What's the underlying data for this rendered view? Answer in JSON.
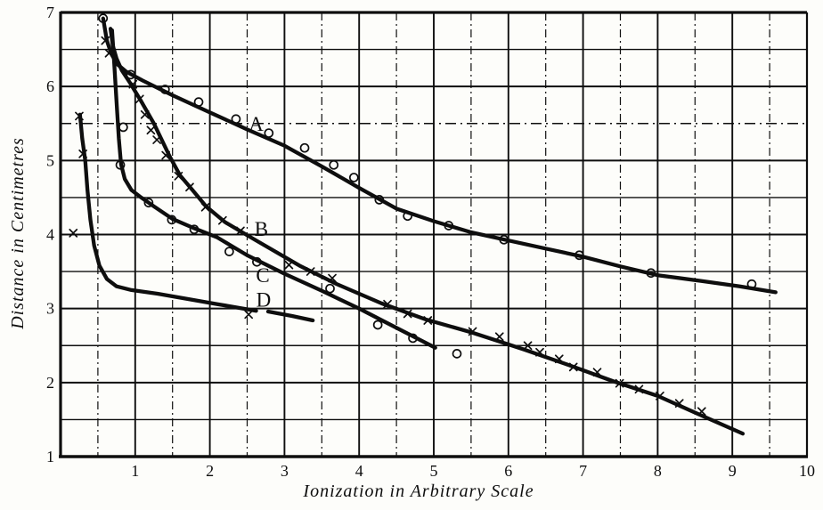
{
  "figure": {
    "background": "#fdfdfa",
    "ink": "#0e0e0e"
  },
  "chart_data": {
    "type": "line",
    "title": "",
    "xlabel": "Ionization in Arbitrary Scale",
    "ylabel": "Distance in Centimetres",
    "xlim": [
      0,
      10
    ],
    "ylim": [
      1,
      7
    ],
    "x_ticks": [
      1,
      2,
      3,
      4,
      5,
      6,
      7,
      8,
      9,
      10
    ],
    "y_ticks": [
      1,
      2,
      3,
      4,
      5,
      6,
      7
    ],
    "grid_step": 0.5,
    "grid": "on",
    "legend_position": "inline-curve-labels",
    "series": [
      {
        "name": "A",
        "marker": "circle",
        "label_pos": {
          "x": 2.62,
          "y": 5.5
        },
        "segments": [
          [
            [
              0.57,
              6.92
            ],
            [
              0.62,
              6.62
            ],
            [
              0.68,
              6.44
            ],
            [
              0.76,
              6.3
            ],
            [
              0.88,
              6.2
            ],
            [
              1.1,
              6.08
            ],
            [
              1.5,
              5.88
            ],
            [
              2.0,
              5.65
            ],
            [
              2.5,
              5.42
            ],
            [
              3.0,
              5.2
            ],
            [
              3.5,
              4.92
            ],
            [
              4.0,
              4.63
            ],
            [
              4.5,
              4.35
            ],
            [
              5.0,
              4.18
            ],
            [
              5.5,
              4.03
            ],
            [
              6.0,
              3.92
            ],
            [
              6.5,
              3.81
            ],
            [
              7.0,
              3.7
            ],
            [
              7.5,
              3.57
            ],
            [
              8.0,
              3.45
            ],
            [
              8.6,
              3.37
            ],
            [
              9.1,
              3.3
            ],
            [
              9.58,
              3.22
            ]
          ]
        ],
        "markers": [
          [
            0.57,
            6.92
          ],
          [
            0.94,
            6.16
          ],
          [
            1.4,
            5.96
          ],
          [
            1.85,
            5.79
          ],
          [
            2.35,
            5.56
          ],
          [
            2.79,
            5.37
          ],
          [
            3.27,
            5.17
          ],
          [
            3.66,
            4.94
          ],
          [
            3.93,
            4.77
          ],
          [
            4.27,
            4.47
          ],
          [
            4.65,
            4.25
          ],
          [
            5.2,
            4.12
          ],
          [
            5.94,
            3.93
          ],
          [
            6.95,
            3.72
          ],
          [
            7.91,
            3.48
          ],
          [
            9.26,
            3.33
          ]
        ]
      },
      {
        "name": "B",
        "marker": "x",
        "label_pos": {
          "x": 2.69,
          "y": 4.08
        },
        "segments": [
          [
            [
              0.67,
              6.78
            ],
            [
              0.7,
              6.55
            ],
            [
              0.75,
              6.38
            ],
            [
              0.82,
              6.22
            ],
            [
              0.93,
              6.05
            ],
            [
              1.08,
              5.8
            ],
            [
              1.25,
              5.5
            ],
            [
              1.46,
              5.06
            ],
            [
              1.6,
              4.8
            ],
            [
              1.75,
              4.62
            ],
            [
              1.95,
              4.38
            ],
            [
              2.2,
              4.17
            ],
            [
              2.45,
              4.02
            ],
            [
              2.62,
              3.92
            ],
            [
              3.2,
              3.58
            ],
            [
              3.7,
              3.33
            ],
            [
              4.3,
              3.07
            ],
            [
              4.9,
              2.85
            ],
            [
              5.5,
              2.68
            ],
            [
              6.2,
              2.45
            ],
            [
              6.8,
              2.24
            ],
            [
              7.4,
              2.02
            ],
            [
              8.0,
              1.82
            ],
            [
              8.6,
              1.55
            ],
            [
              9.14,
              1.31
            ]
          ]
        ],
        "markers": [
          [
            0.6,
            6.62
          ],
          [
            0.65,
            6.45
          ],
          [
            0.97,
            6.03
          ],
          [
            1.06,
            5.83
          ],
          [
            1.13,
            5.62
          ],
          [
            1.21,
            5.41
          ],
          [
            1.29,
            5.28
          ],
          [
            1.41,
            5.07
          ],
          [
            1.58,
            4.79
          ],
          [
            1.73,
            4.64
          ],
          [
            1.94,
            4.37
          ],
          [
            2.17,
            4.19
          ],
          [
            2.41,
            4.05
          ],
          [
            3.06,
            3.59
          ],
          [
            3.35,
            3.5
          ],
          [
            3.64,
            3.41
          ],
          [
            4.38,
            3.06
          ],
          [
            4.65,
            2.93
          ],
          [
            4.92,
            2.84
          ],
          [
            5.52,
            2.69
          ],
          [
            5.88,
            2.62
          ],
          [
            6.26,
            2.5
          ],
          [
            6.42,
            2.41
          ],
          [
            6.68,
            2.32
          ],
          [
            6.87,
            2.21
          ],
          [
            7.19,
            2.14
          ],
          [
            7.49,
            1.99
          ],
          [
            7.75,
            1.91
          ],
          [
            8.03,
            1.82
          ],
          [
            8.29,
            1.72
          ],
          [
            8.59,
            1.61
          ]
        ]
      },
      {
        "name": "C",
        "marker": "circle",
        "label_pos": {
          "x": 2.71,
          "y": 3.45
        },
        "segments": [
          [
            [
              0.69,
              6.76
            ],
            [
              0.72,
              6.3
            ],
            [
              0.75,
              5.8
            ],
            [
              0.78,
              5.3
            ],
            [
              0.81,
              4.95
            ],
            [
              0.86,
              4.75
            ],
            [
              0.95,
              4.6
            ],
            [
              1.08,
              4.5
            ],
            [
              1.25,
              4.38
            ],
            [
              1.5,
              4.21
            ],
            [
              1.8,
              4.08
            ],
            [
              2.1,
              3.96
            ],
            [
              2.5,
              3.72
            ],
            [
              3.0,
              3.47
            ],
            [
              3.5,
              3.24
            ],
            [
              4.0,
              3.0
            ],
            [
              4.5,
              2.74
            ],
            [
              5.02,
              2.47
            ]
          ]
        ],
        "markers": [
          [
            0.84,
            5.45
          ],
          [
            0.8,
            4.94
          ],
          [
            1.18,
            4.43
          ],
          [
            1.49,
            4.2
          ],
          [
            1.79,
            4.07
          ],
          [
            2.26,
            3.77
          ],
          [
            2.63,
            3.63
          ],
          [
            3.61,
            3.27
          ],
          [
            4.25,
            2.78
          ],
          [
            4.72,
            2.6
          ],
          [
            5.31,
            2.39
          ]
        ]
      },
      {
        "name": "D",
        "marker": "x",
        "label_pos": {
          "x": 2.72,
          "y": 3.12
        },
        "segments": [
          [
            [
              0.26,
              5.62
            ],
            [
              0.29,
              5.3
            ],
            [
              0.33,
              5.0
            ],
            [
              0.36,
              4.6
            ],
            [
              0.4,
              4.2
            ],
            [
              0.45,
              3.85
            ],
            [
              0.52,
              3.58
            ],
            [
              0.62,
              3.4
            ],
            [
              0.75,
              3.3
            ],
            [
              0.95,
              3.25
            ],
            [
              1.3,
              3.2
            ],
            [
              1.7,
              3.13
            ],
            [
              2.1,
              3.06
            ],
            [
              2.5,
              2.99
            ],
            [
              2.62,
              2.97
            ]
          ],
          [
            [
              2.78,
              2.96
            ],
            [
              3.1,
              2.9
            ],
            [
              3.38,
              2.84
            ]
          ]
        ],
        "markers": [
          [
            0.25,
            5.6
          ],
          [
            0.3,
            5.09
          ],
          [
            0.17,
            4.02
          ],
          [
            2.52,
            2.92
          ]
        ]
      }
    ]
  }
}
